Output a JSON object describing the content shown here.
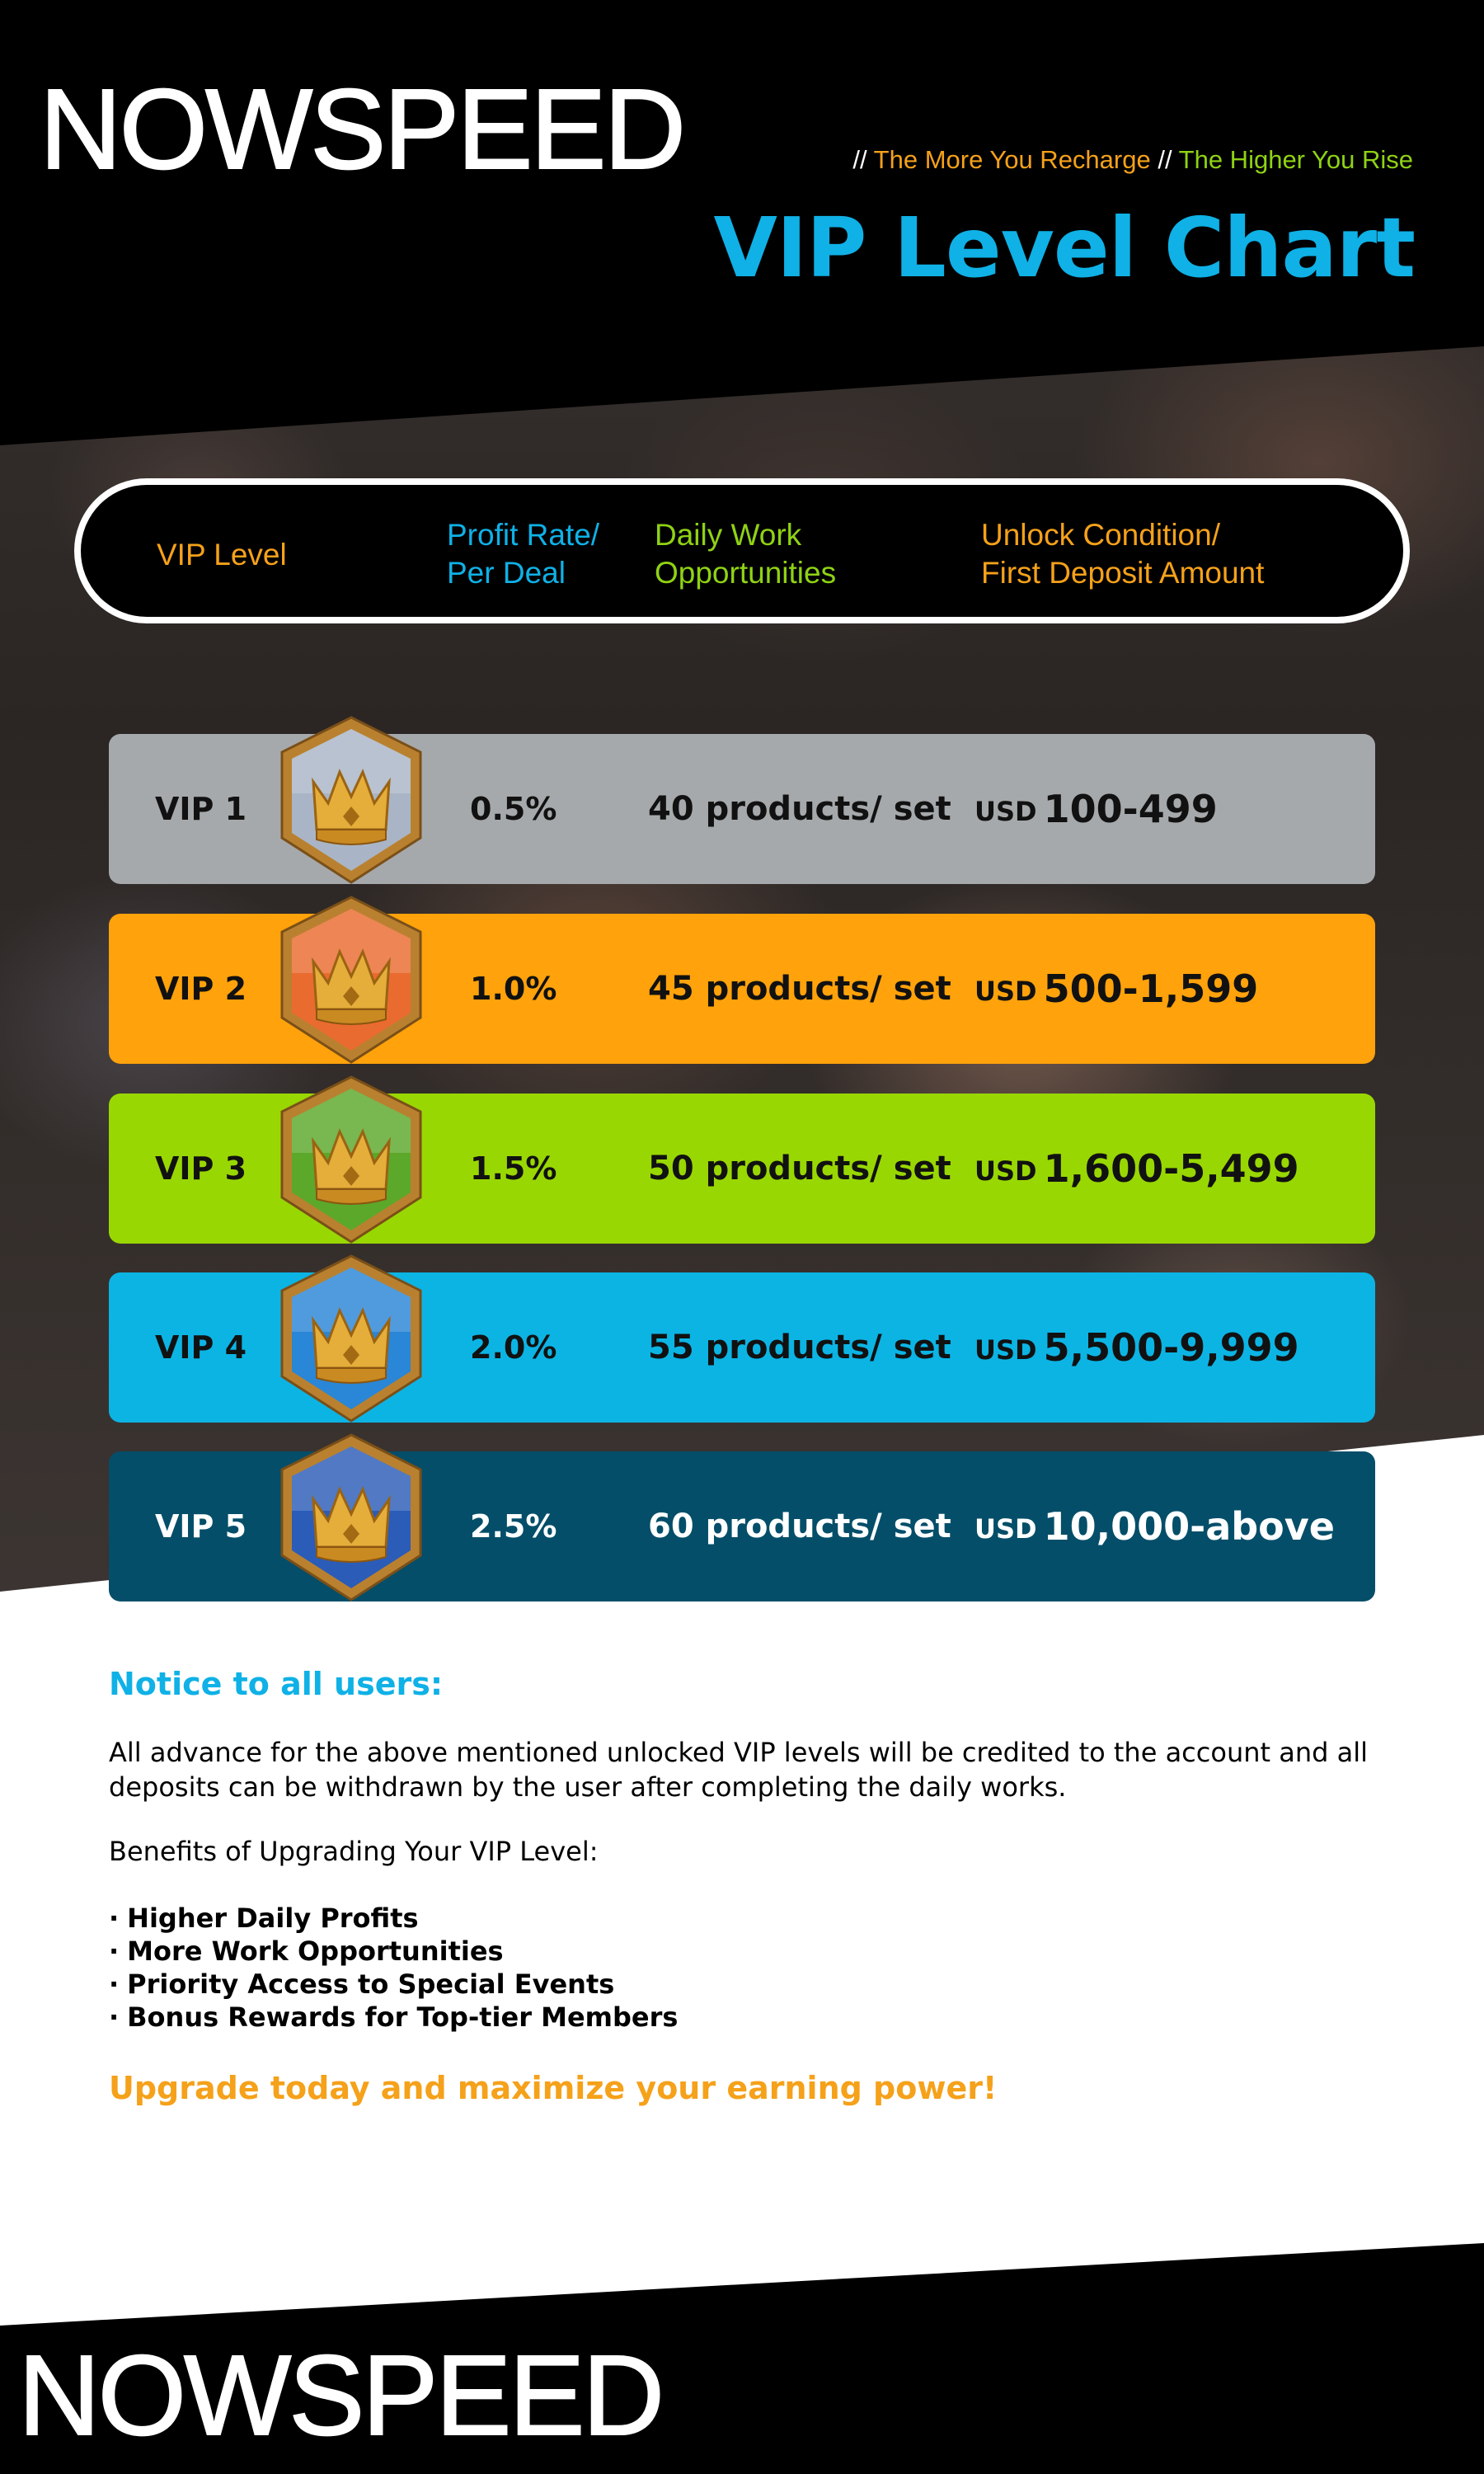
{
  "brand": {
    "name": "NOWSPEED"
  },
  "header": {
    "separator": "//",
    "tagline_1": "The More You Recharge",
    "tagline_2": "The Higher You Rise",
    "title": "VIP Level Chart"
  },
  "columns": {
    "vip_level": "VIP Level",
    "profit_rate_1": "Profit Rate/",
    "profit_rate_2": "Per Deal",
    "daily_work_1": "Daily Work",
    "daily_work_2": "Opportunities",
    "unlock_1": "Unlock Condition/",
    "unlock_2": "First Deposit Amount"
  },
  "rows": [
    {
      "level": "VIP 1",
      "rate": "0.5%",
      "daily": "40 products/ set",
      "currency": "USD",
      "amount": "100-499",
      "bg": "#a6a9ab",
      "text": "#111111",
      "badge": "#a9b5c6",
      "badge_icon": "crown-badge-icon"
    },
    {
      "level": "VIP 2",
      "rate": "1.0%",
      "daily": "45 products/ set",
      "currency": "USD",
      "amount": "500-1,599",
      "bg": "#ffa20b",
      "text": "#111111",
      "badge": "#ea6b2f",
      "badge_icon": "crown-badge-icon"
    },
    {
      "level": "VIP 3",
      "rate": "1.5%",
      "daily": "50 products/ set",
      "currency": "USD",
      "amount": "1,600-5,499",
      "bg": "#99d702",
      "text": "#111111",
      "badge": "#5ca82a",
      "badge_icon": "crown-badge-icon"
    },
    {
      "level": "VIP 4",
      "rate": "2.0%",
      "daily": "55 products/ set",
      "currency": "USD",
      "amount": "5,500-9,999",
      "bg": "#0cb4e4",
      "text": "#111111",
      "badge": "#2a86d6",
      "badge_icon": "crown-badge-icon"
    },
    {
      "level": "VIP 5",
      "rate": "2.5%",
      "daily": "60 products/ set",
      "currency": "USD",
      "amount": "10,000-above",
      "bg": "#044e69",
      "text": "#ffffff",
      "badge": "#2b5cb8",
      "badge_icon": "crown-badge-icon"
    }
  ],
  "notice": {
    "title": "Notice to all users:",
    "body": "All advance for the above mentioned unlocked VIP levels will be credited to the account and all deposits can be withdrawn by the user after completing the daily works.",
    "benefits_title": "Benefits of Upgrading Your VIP Level:",
    "bullet": "·",
    "benefits": [
      "Higher Daily Profits",
      "More Work Opportunities",
      "Priority Access to Special Events",
      "Bonus Rewards for Top-tier Members"
    ],
    "cta": "Upgrade today and maximize your earning power!"
  },
  "colors": {
    "orange": "#f5a11a",
    "green": "#8fd214",
    "cyan": "#0fb1e6"
  }
}
